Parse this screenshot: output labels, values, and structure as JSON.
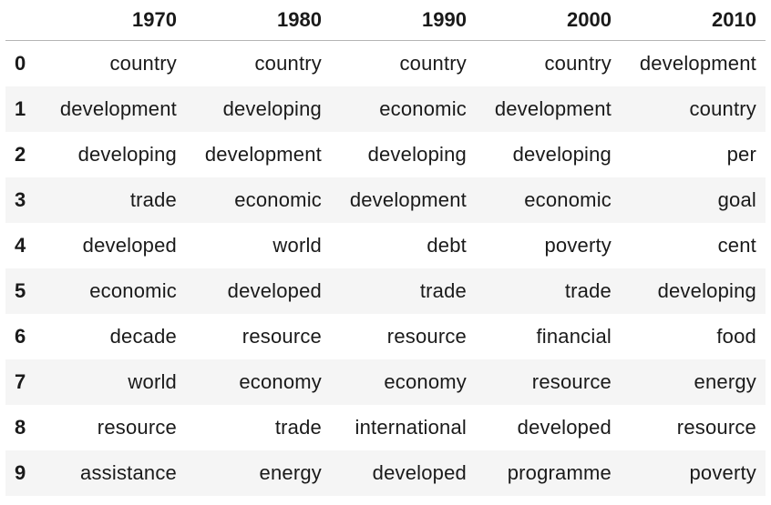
{
  "table": {
    "index_header": "",
    "columns": [
      "1970",
      "1980",
      "1990",
      "2000",
      "2010"
    ],
    "rows": [
      {
        "index": "0",
        "cells": [
          "country",
          "country",
          "country",
          "country",
          "development"
        ]
      },
      {
        "index": "1",
        "cells": [
          "development",
          "developing",
          "economic",
          "development",
          "country"
        ]
      },
      {
        "index": "2",
        "cells": [
          "developing",
          "development",
          "developing",
          "developing",
          "per"
        ]
      },
      {
        "index": "3",
        "cells": [
          "trade",
          "economic",
          "development",
          "economic",
          "goal"
        ]
      },
      {
        "index": "4",
        "cells": [
          "developed",
          "world",
          "debt",
          "poverty",
          "cent"
        ]
      },
      {
        "index": "5",
        "cells": [
          "economic",
          "developed",
          "trade",
          "trade",
          "developing"
        ]
      },
      {
        "index": "6",
        "cells": [
          "decade",
          "resource",
          "resource",
          "financial",
          "food"
        ]
      },
      {
        "index": "7",
        "cells": [
          "world",
          "economy",
          "economy",
          "resource",
          "energy"
        ]
      },
      {
        "index": "8",
        "cells": [
          "resource",
          "trade",
          "international",
          "developed",
          "resource"
        ]
      },
      {
        "index": "9",
        "cells": [
          "assistance",
          "energy",
          "developed",
          "programme",
          "poverty"
        ]
      }
    ]
  }
}
